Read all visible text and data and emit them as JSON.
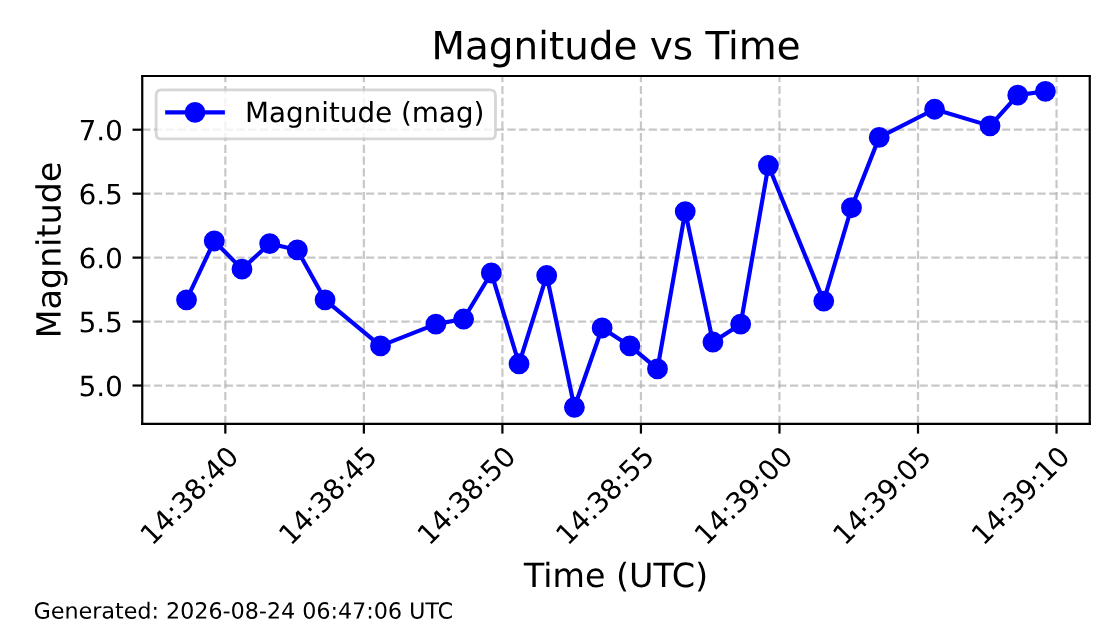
{
  "chart_data": {
    "type": "line",
    "title": "Magnitude vs Time",
    "xlabel": "Time (UTC)",
    "ylabel": "Magnitude",
    "x": [
      14.644055,
      14.644333,
      14.644611,
      14.644889,
      14.645166,
      14.645444,
      14.646,
      14.646555,
      14.646833,
      14.647111,
      14.647389,
      14.647666,
      14.647944,
      14.648222,
      14.6485,
      14.648777,
      14.649055,
      14.649333,
      14.649611,
      14.649889,
      14.650444,
      14.650722,
      14.651,
      14.651555,
      14.652111,
      14.652389,
      14.652666
    ],
    "series": [
      {
        "name": "Magnitude (mag)",
        "color": "#0000ff",
        "values": [
          5.67,
          6.13,
          5.91,
          6.11,
          6.06,
          5.67,
          5.31,
          5.48,
          5.52,
          5.88,
          5.17,
          5.86,
          4.83,
          5.45,
          5.31,
          5.13,
          6.36,
          5.34,
          5.48,
          6.72,
          5.66,
          6.39,
          6.94,
          7.16,
          7.03,
          7.27,
          7.3
        ]
      }
    ],
    "xlim": [
      14.643611,
      14.653111
    ],
    "xticks": [
      {
        "value": 14.644444,
        "label": "14:38:40"
      },
      {
        "value": 14.645833,
        "label": "14:38:45"
      },
      {
        "value": 14.647222,
        "label": "14:38:50"
      },
      {
        "value": 14.648611,
        "label": "14:38:55"
      },
      {
        "value": 14.65,
        "label": "14:39:00"
      },
      {
        "value": 14.651389,
        "label": "14:39:05"
      },
      {
        "value": 14.652778,
        "label": "14:39:10"
      }
    ],
    "ylim": [
      4.7,
      7.42
    ],
    "yticks": [
      {
        "value": 5.0,
        "label": "5.0"
      },
      {
        "value": 5.5,
        "label": "5.5"
      },
      {
        "value": 6.0,
        "label": "6.0"
      },
      {
        "value": 6.5,
        "label": "6.5"
      },
      {
        "value": 7.0,
        "label": "7.0"
      }
    ],
    "grid": true,
    "legend": "top left",
    "marker": "circle",
    "line_style": "solid",
    "annotations": [
      "Generated: 2026-08-24 06:47:06 UTC"
    ]
  }
}
